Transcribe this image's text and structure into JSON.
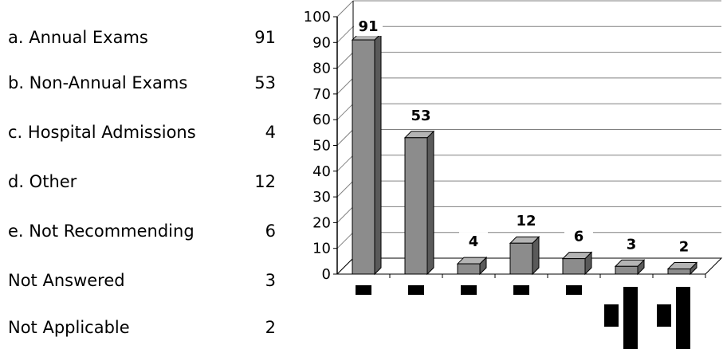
{
  "legend": {
    "items": [
      {
        "label": "a. Annual Exams",
        "value": "91"
      },
      {
        "label": "b. Non-Annual Exams",
        "value": "53"
      },
      {
        "label": "c. Hospital Admissions",
        "value": "4"
      },
      {
        "label": "d. Other",
        "value": "12"
      },
      {
        "label": "e. Not Recommending",
        "value": "6"
      },
      {
        "label": "Not Answered",
        "value": "3"
      },
      {
        "label": "Not Applicable",
        "value": "2"
      }
    ]
  },
  "chart_data": {
    "type": "bar",
    "categories": [
      "a. Annual Exams",
      "b. Non-Annual Exams",
      "c. Hospital Admissions",
      "d. Other",
      "e. Not Recommending",
      "Not Answered",
      "Not Applicable"
    ],
    "values": [
      91,
      53,
      4,
      12,
      6,
      3,
      2
    ],
    "data_labels": [
      "91",
      "53",
      "4",
      "12",
      "6",
      "3",
      "2"
    ],
    "ylim": [
      0,
      100
    ],
    "yticks": [
      0,
      10,
      20,
      30,
      40,
      50,
      60,
      70,
      80,
      90,
      100
    ],
    "grid": true,
    "style": "3d",
    "colors": {
      "bar_front": "#8c8c8c",
      "bar_side": "#5a5a5a",
      "bar_top": "#b4b4b4",
      "grid": "#808080",
      "axis": "#000000"
    }
  }
}
